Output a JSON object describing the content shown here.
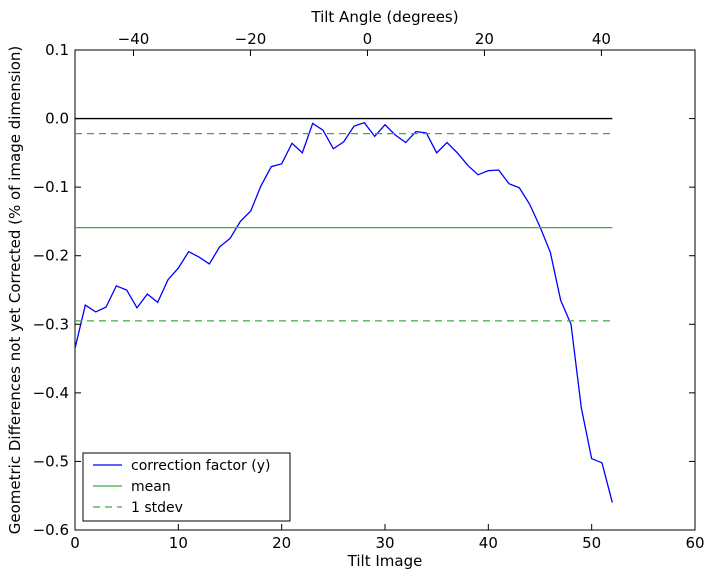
{
  "chart_data": {
    "type": "line",
    "title": "",
    "xlabel": "Tilt Image",
    "ylabel": "Geometric Differences not yet Corrected (% of image dimension)",
    "x2label": "Tilt Angle (degrees)",
    "xlim": [
      0,
      60
    ],
    "ylim": [
      -0.6,
      0.1
    ],
    "x2lim": [
      -50,
      56
    ],
    "xticks": [
      0,
      10,
      20,
      30,
      40,
      50,
      60
    ],
    "xtick_labels": [
      "0",
      "10",
      "20",
      "30",
      "40",
      "50",
      "60"
    ],
    "yticks": [
      0.1,
      0.0,
      -0.1,
      -0.2,
      -0.3,
      -0.4,
      -0.5,
      -0.6
    ],
    "ytick_labels": [
      "0.1",
      "0.0",
      "−0.1",
      "−0.2",
      "−0.3",
      "−0.4",
      "−0.5",
      "−0.6"
    ],
    "x2ticks": [
      -40,
      -20,
      0,
      20,
      40
    ],
    "x2tick_labels": [
      "−40",
      "−20",
      "0",
      "20",
      "40"
    ],
    "grid": false,
    "legend_position": "lower-left",
    "series": [
      {
        "name": "correction factor (y)",
        "color": "#0000ff",
        "style": "solid",
        "x": [
          0,
          1,
          2,
          3,
          4,
          5,
          6,
          7,
          8,
          9,
          10,
          11,
          12,
          13,
          14,
          15,
          16,
          17,
          18,
          19,
          20,
          21,
          22,
          23,
          24,
          25,
          26,
          27,
          28,
          29,
          30,
          31,
          32,
          33,
          34,
          35,
          36,
          37,
          38,
          39,
          40,
          41,
          42,
          43,
          44,
          45,
          46,
          47,
          48,
          49,
          50,
          51,
          52
        ],
        "y": [
          -0.335,
          -0.272,
          -0.282,
          -0.275,
          -0.244,
          -0.25,
          -0.276,
          -0.256,
          -0.268,
          -0.235,
          -0.218,
          -0.194,
          -0.202,
          -0.212,
          -0.187,
          -0.175,
          -0.15,
          -0.135,
          -0.098,
          -0.07,
          -0.066,
          -0.036,
          -0.05,
          -0.007,
          -0.017,
          -0.044,
          -0.034,
          -0.011,
          -0.006,
          -0.026,
          -0.009,
          -0.024,
          -0.035,
          -0.019,
          -0.021,
          -0.05,
          -0.035,
          -0.05,
          -0.068,
          -0.082,
          -0.076,
          -0.075,
          -0.095,
          -0.101,
          -0.125,
          -0.158,
          -0.195,
          -0.265,
          -0.3,
          -0.422,
          -0.496,
          -0.502,
          -0.56
        ]
      },
      {
        "name": "mean",
        "color": "#3caa3c",
        "style": "solid",
        "x": [
          0,
          52
        ],
        "y": [
          -0.159,
          -0.159
        ]
      },
      {
        "name": "1 stdev",
        "color": "#3caa3c",
        "style": "dashed",
        "x": [
          0,
          52
        ],
        "y": [
          -0.022,
          -0.022
        ]
      },
      {
        "name": "",
        "color": "#3caa3c",
        "style": "dashed",
        "x": [
          0,
          52
        ],
        "y": [
          -0.295,
          -0.295
        ]
      },
      {
        "name": "",
        "color": "#000000",
        "style": "solid",
        "x": [
          0,
          52
        ],
        "y": [
          0.0,
          0.0
        ]
      }
    ],
    "legend": [
      {
        "label": "correction factor (y)",
        "color": "#0000ff",
        "style": "solid"
      },
      {
        "label": "mean",
        "color": "#3caa3c",
        "style": "solid"
      },
      {
        "label": "1 stdev",
        "color": "#3caa3c",
        "style": "dashed"
      }
    ]
  }
}
